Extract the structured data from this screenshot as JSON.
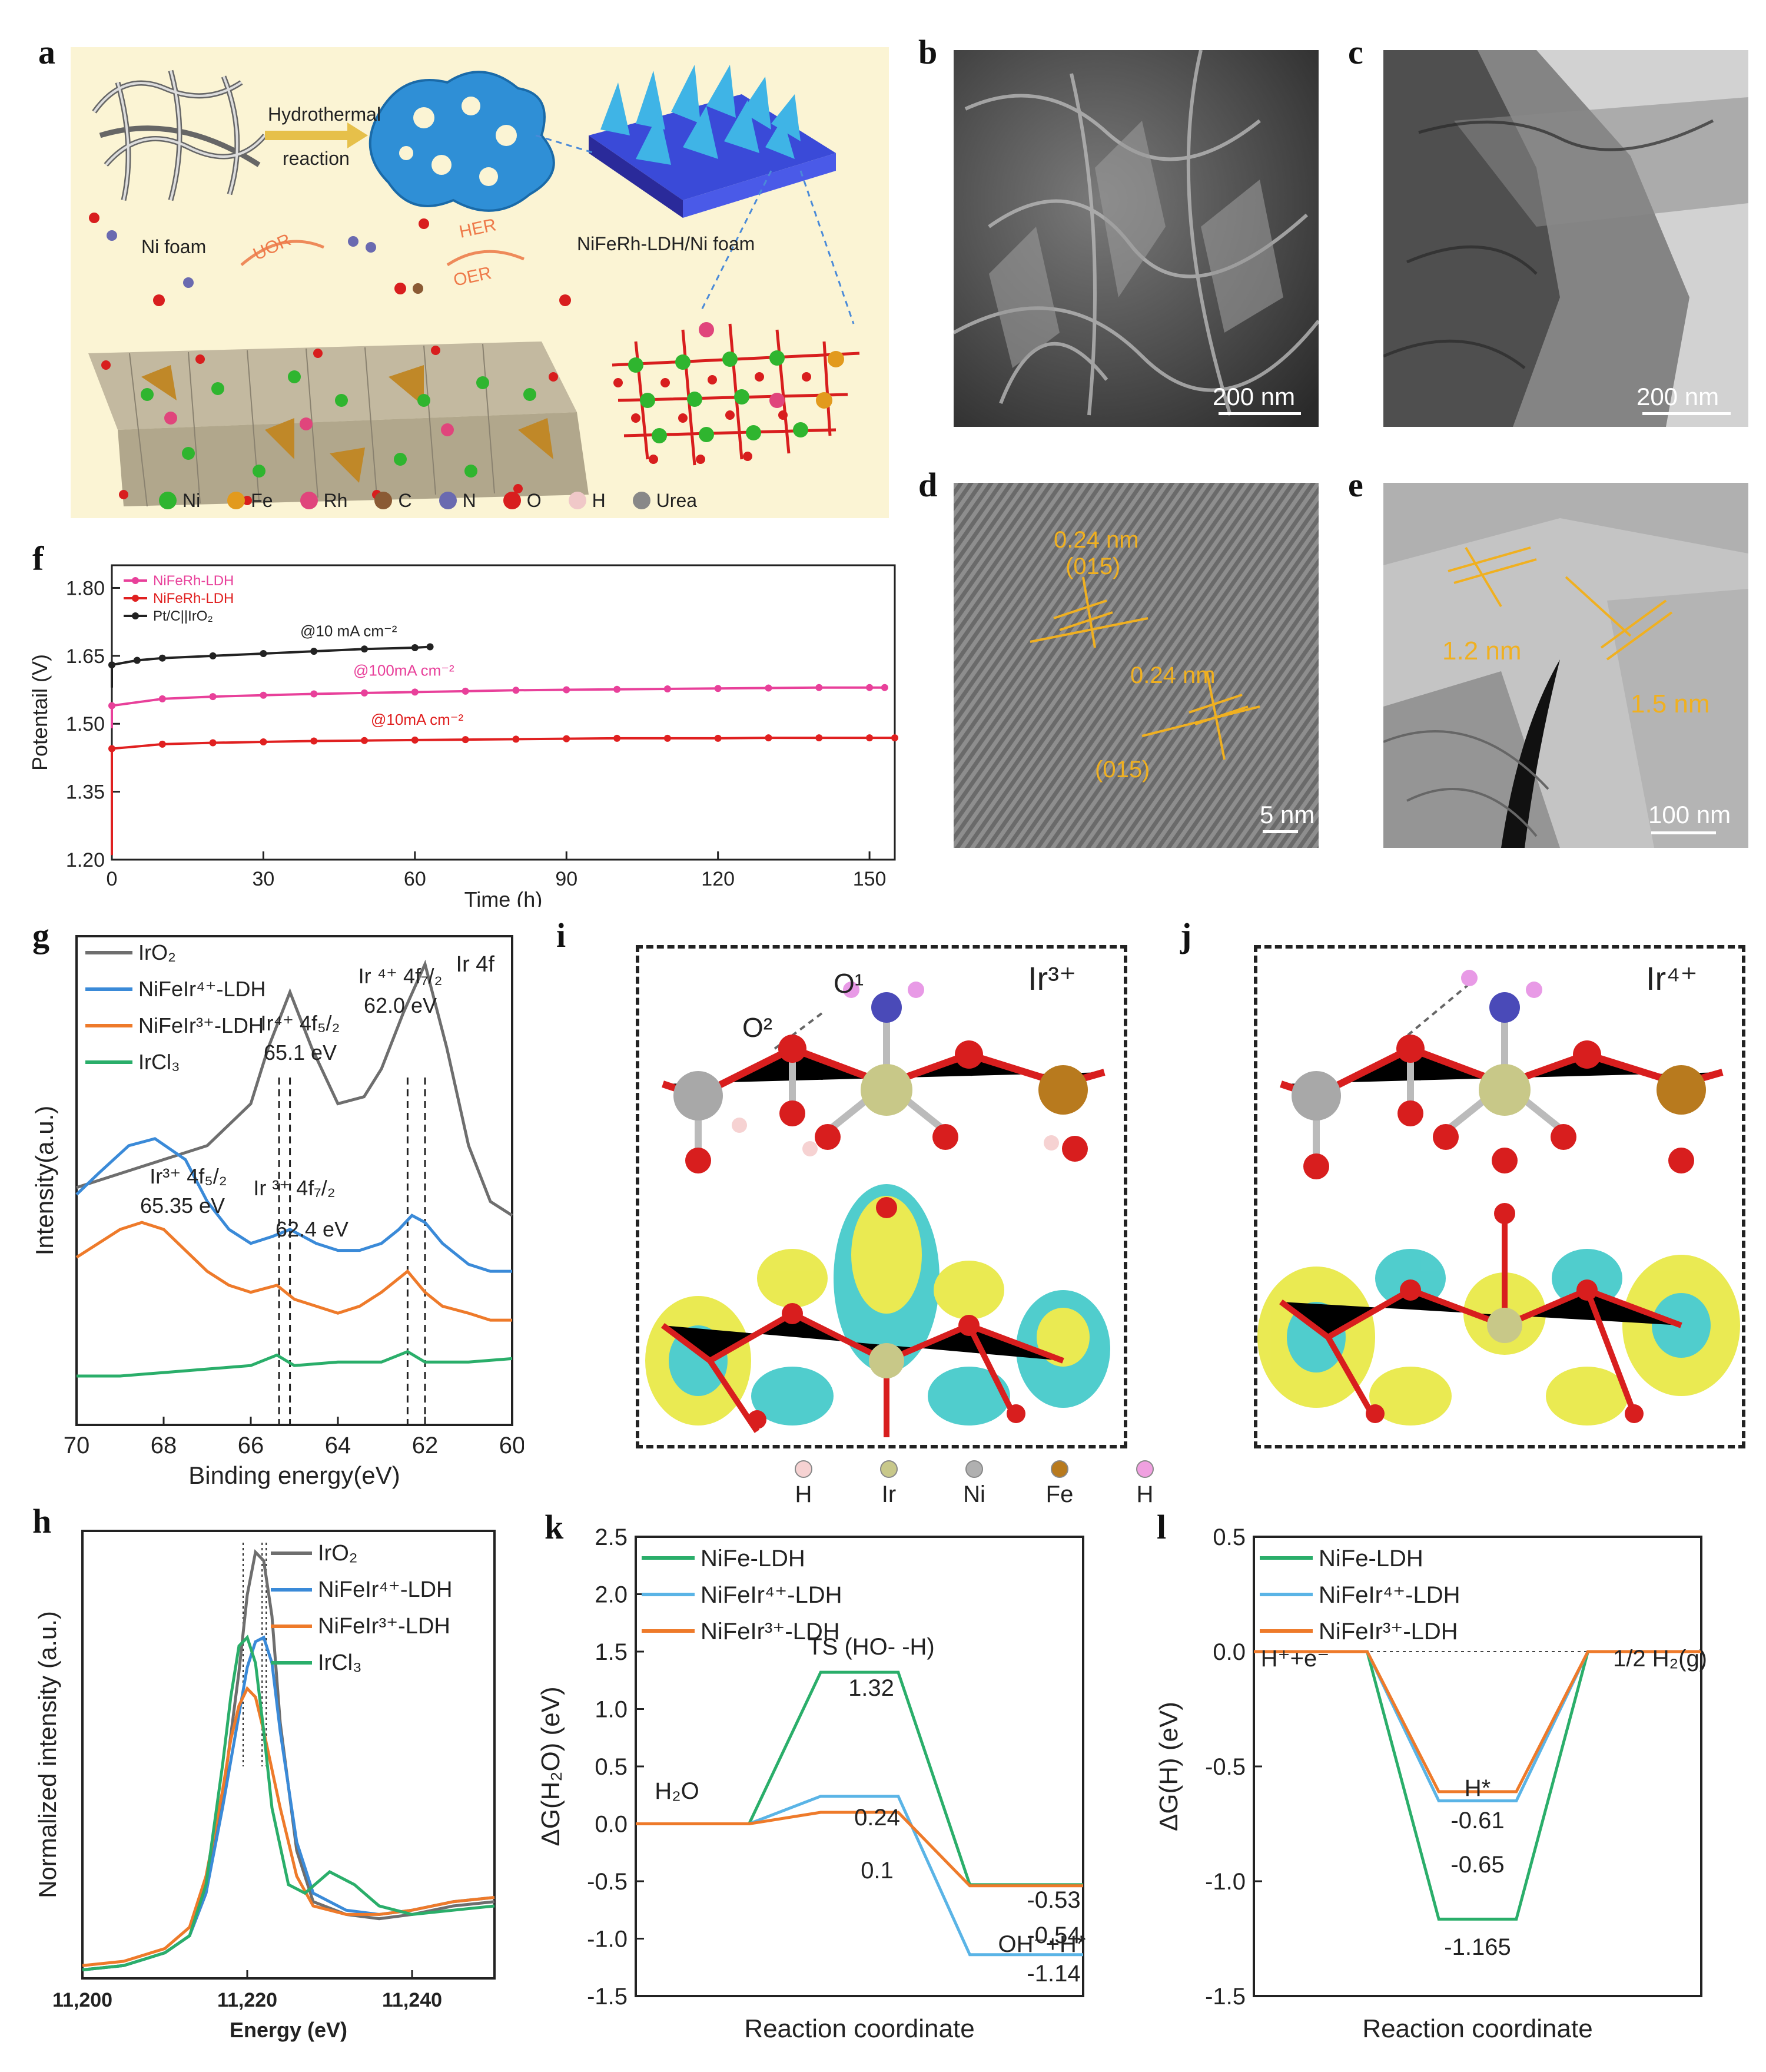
{
  "panels": {
    "a": {
      "label": "a",
      "texts": {
        "hydrothermal": "Hydrothermal",
        "reaction": "reaction",
        "ni_foam": "Ni foam",
        "product": "NiFeRh-LDH/Ni foam",
        "uor": "UOR",
        "her": "HER",
        "oer": "OER"
      },
      "legend": [
        {
          "label": "Ni",
          "color": "#2fb52f"
        },
        {
          "label": "Fe",
          "color": "#e29a1d"
        },
        {
          "label": "Rh",
          "color": "#e0457c"
        },
        {
          "label": "C",
          "color": "#8a5a34"
        },
        {
          "label": "N",
          "color": "#6a6ab0"
        },
        {
          "label": "O",
          "color": "#d81e1e"
        },
        {
          "label": "H",
          "color": "#f0c8c8"
        },
        {
          "label": "Urea",
          "color": "#888888"
        }
      ]
    },
    "b": {
      "label": "b",
      "scalebar": "200 nm"
    },
    "c": {
      "label": "c",
      "scalebar": "200 nm"
    },
    "d": {
      "label": "d",
      "scalebar": "5 nm",
      "annotations": [
        "0.24 nm",
        "(015)",
        "0.24 nm",
        "(015)"
      ]
    },
    "e": {
      "label": "e",
      "scalebar": "100 nm",
      "annotations": [
        "1.2 nm",
        "1.5 nm"
      ]
    },
    "f": {
      "label": "f"
    },
    "g": {
      "label": "g",
      "corner": "Ir 4f",
      "annotations": [
        "Ir⁴⁺ 4f₅/₂",
        "65.1 eV",
        "Ir ⁴⁺ 4f₇/₂",
        "62.0 eV",
        "Ir³⁺ 4f₅/₂",
        "65.35 eV",
        "Ir ³⁺ 4f₇/₂",
        "62.4 eV"
      ]
    },
    "h": {
      "label": "h"
    },
    "i": {
      "label": "i",
      "ion": "Ir³⁺",
      "atom_labels": [
        "O¹",
        "O²"
      ]
    },
    "j": {
      "label": "j",
      "ion": "Ir⁴⁺"
    },
    "ij_legend": [
      {
        "label": "H",
        "color": "#f6d2d2"
      },
      {
        "label": "Ir",
        "color": "#c8c88a"
      },
      {
        "label": "Ni",
        "color": "#b0b0b0"
      },
      {
        "label": "Fe",
        "color": "#b87a1e"
      },
      {
        "label": "H",
        "color": "#f0a0e0"
      }
    ],
    "k": {
      "label": "k"
    },
    "l": {
      "label": "l"
    }
  },
  "chart_data": [
    {
      "panel": "f",
      "type": "line",
      "xlabel": "Time (h)",
      "ylabel": "Potentail (V)",
      "xlim": [
        0,
        155
      ],
      "ylim": [
        1.2,
        1.85
      ],
      "xticks": [
        0,
        30,
        60,
        90,
        120,
        150
      ],
      "yticks": [
        1.2,
        1.35,
        1.5,
        1.65,
        1.8
      ],
      "legend_position": "top-left",
      "series": [
        {
          "name": "NiFeRh-LDH",
          "color": "#e8409a",
          "annotation": "@100mA cm⁻²",
          "x": [
            0,
            10,
            20,
            30,
            40,
            50,
            60,
            70,
            80,
            90,
            100,
            110,
            120,
            130,
            140,
            150,
            153
          ],
          "y": [
            1.54,
            1.555,
            1.56,
            1.563,
            1.566,
            1.568,
            1.57,
            1.572,
            1.574,
            1.575,
            1.576,
            1.577,
            1.578,
            1.579,
            1.58,
            1.58,
            1.58
          ]
        },
        {
          "name": "NiFeRh-LDH",
          "color": "#e02020",
          "annotation": "@10mA cm⁻²",
          "x": [
            0,
            10,
            20,
            30,
            40,
            50,
            60,
            70,
            80,
            90,
            100,
            110,
            120,
            130,
            140,
            150,
            155
          ],
          "y": [
            1.445,
            1.455,
            1.458,
            1.46,
            1.462,
            1.463,
            1.464,
            1.465,
            1.466,
            1.467,
            1.468,
            1.468,
            1.468,
            1.469,
            1.469,
            1.469,
            1.469
          ]
        },
        {
          "name": "Pt/C||IrO₂",
          "color": "#222222",
          "annotation": "@10 mA cm⁻²",
          "x": [
            0,
            5,
            10,
            20,
            30,
            40,
            50,
            60,
            63
          ],
          "y": [
            1.63,
            1.64,
            1.645,
            1.65,
            1.655,
            1.66,
            1.665,
            1.668,
            1.67
          ]
        }
      ]
    },
    {
      "panel": "g",
      "type": "line",
      "xlabel": "Binding energy(eV)",
      "ylabel": "Intensity(a.u.)",
      "xlim": [
        70,
        60
      ],
      "xticks": [
        70,
        68,
        66,
        64,
        62,
        60
      ],
      "legend_position": "top-left",
      "series": [
        {
          "name": "IrO₂",
          "color": "#6e6e6e",
          "x": [
            70,
            69,
            68,
            67,
            66,
            65.6,
            65.1,
            64.6,
            64,
            63.4,
            63,
            62.5,
            62,
            61.5,
            61,
            60.5,
            60
          ],
          "y": [
            0.64,
            0.66,
            0.68,
            0.7,
            0.76,
            0.84,
            0.92,
            0.84,
            0.76,
            0.77,
            0.81,
            0.89,
            0.96,
            0.84,
            0.7,
            0.62,
            0.6
          ]
        },
        {
          "name": "NiFeIr⁴⁺-LDH",
          "color": "#3a8ad8",
          "x": [
            70,
            69.5,
            68.8,
            68.2,
            67.5,
            67,
            66.5,
            66,
            65.5,
            65.1,
            64.5,
            64,
            63.5,
            63,
            62.6,
            62.3,
            62,
            61.6,
            61,
            60.5,
            60
          ],
          "y": [
            0.63,
            0.66,
            0.7,
            0.71,
            0.68,
            0.62,
            0.58,
            0.56,
            0.57,
            0.58,
            0.56,
            0.55,
            0.55,
            0.56,
            0.58,
            0.6,
            0.59,
            0.56,
            0.53,
            0.52,
            0.52
          ]
        },
        {
          "name": "NiFeIr³⁺-LDH",
          "color": "#ee7a2a",
          "x": [
            70,
            69.5,
            69,
            68.5,
            68,
            67.5,
            67,
            66.5,
            66,
            65.4,
            65,
            64.5,
            64,
            63.5,
            63,
            62.4,
            62,
            61.6,
            61,
            60.5,
            60
          ],
          "y": [
            0.54,
            0.56,
            0.58,
            0.59,
            0.58,
            0.55,
            0.52,
            0.5,
            0.49,
            0.5,
            0.48,
            0.47,
            0.46,
            0.47,
            0.49,
            0.52,
            0.49,
            0.47,
            0.46,
            0.45,
            0.45
          ]
        },
        {
          "name": "IrCl₃",
          "color": "#2aae6a",
          "x": [
            70,
            69,
            68,
            67,
            66,
            65.4,
            65,
            64,
            63,
            62.4,
            62,
            61,
            60
          ],
          "y": [
            0.37,
            0.37,
            0.375,
            0.38,
            0.385,
            0.4,
            0.385,
            0.39,
            0.39,
            0.405,
            0.39,
            0.39,
            0.395
          ]
        }
      ]
    },
    {
      "panel": "h",
      "type": "line",
      "xlabel": "Energy (eV)",
      "ylabel": "Normalized intensity (a.u.)",
      "xlim": [
        11200,
        11250
      ],
      "xticks": [
        11200,
        11220,
        11240
      ],
      "xticklabels": [
        "11,200",
        "11,220",
        "11,240"
      ],
      "legend_position": "top-right",
      "series": [
        {
          "name": "IrO₂",
          "color": "#6e6e6e",
          "x": [
            11200,
            11205,
            11210,
            11213,
            11215,
            11217,
            11219,
            11220,
            11221,
            11222,
            11223,
            11224,
            11226,
            11228,
            11232,
            11236,
            11240,
            11245,
            11250
          ],
          "y": [
            0.02,
            0.03,
            0.06,
            0.1,
            0.2,
            0.42,
            0.72,
            0.9,
            1.0,
            0.98,
            0.85,
            0.6,
            0.3,
            0.18,
            0.15,
            0.14,
            0.15,
            0.17,
            0.18
          ]
        },
        {
          "name": "NiFeIr⁴⁺-LDH",
          "color": "#3a8ad8",
          "x": [
            11200,
            11205,
            11210,
            11213,
            11215,
            11217,
            11219,
            11220,
            11221,
            11222,
            11223,
            11224,
            11226,
            11228,
            11232,
            11236,
            11240,
            11245,
            11250
          ],
          "y": [
            0.02,
            0.03,
            0.06,
            0.1,
            0.2,
            0.4,
            0.62,
            0.73,
            0.79,
            0.8,
            0.74,
            0.58,
            0.32,
            0.2,
            0.16,
            0.15,
            0.16,
            0.18,
            0.19
          ]
        },
        {
          "name": "NiFeIr³⁺-LDH",
          "color": "#ee7a2a",
          "x": [
            11200,
            11205,
            11210,
            11213,
            11215,
            11217,
            11218,
            11219,
            11220,
            11221,
            11222,
            11224,
            11226,
            11228,
            11232,
            11236,
            11240,
            11245,
            11250
          ],
          "y": [
            0.03,
            0.04,
            0.07,
            0.12,
            0.24,
            0.44,
            0.56,
            0.64,
            0.68,
            0.66,
            0.58,
            0.4,
            0.24,
            0.17,
            0.15,
            0.15,
            0.16,
            0.18,
            0.19
          ]
        },
        {
          "name": "IrCl₃",
          "color": "#2aae6a",
          "x": [
            11200,
            11205,
            11210,
            11213,
            11215,
            11217,
            11218,
            11219,
            11220,
            11221,
            11222,
            11223,
            11225,
            11227,
            11230,
            11233,
            11236,
            11240,
            11245,
            11250
          ],
          "y": [
            0.02,
            0.03,
            0.06,
            0.1,
            0.22,
            0.5,
            0.66,
            0.78,
            0.8,
            0.74,
            0.58,
            0.4,
            0.22,
            0.2,
            0.25,
            0.22,
            0.17,
            0.15,
            0.16,
            0.17
          ]
        }
      ]
    },
    {
      "panel": "k",
      "type": "line",
      "xlabel": "Reaction coordinate",
      "ylabel": "ΔG(H₂O) (eV)",
      "ylim": [
        -1.5,
        2.5
      ],
      "yticks": [
        -1.5,
        -1.0,
        -0.5,
        0.0,
        0.5,
        1.0,
        1.5,
        2.0,
        2.5
      ],
      "legend_position": "top-left",
      "state_labels": [
        {
          "text": "H₂O",
          "state": 0
        },
        {
          "text": "TS (HO- -H)",
          "state": 1
        },
        {
          "text": "OH⁻+H*",
          "state": 2
        }
      ],
      "series": [
        {
          "name": "NiFe-LDH",
          "color": "#2aae6a",
          "levels": [
            0,
            1.32,
            -0.53
          ]
        },
        {
          "name": "NiFeIr⁴⁺-LDH",
          "color": "#5ab4e6",
          "levels": [
            0,
            0.24,
            -1.14
          ]
        },
        {
          "name": "NiFeIr³⁺-LDH",
          "color": "#ee7a2a",
          "levels": [
            0,
            0.1,
            -0.54
          ]
        }
      ],
      "value_labels": [
        "1.32",
        "0.24",
        "0.1",
        "-0.53",
        "-0.54",
        "-1.14"
      ]
    },
    {
      "panel": "l",
      "type": "line",
      "xlabel": "Reaction coordinate",
      "ylabel": "ΔG(H) (eV)",
      "ylim": [
        -1.5,
        0.5
      ],
      "yticks": [
        -1.5,
        -1.0,
        -0.5,
        0.0,
        0.5
      ],
      "legend_position": "top-left",
      "state_labels": [
        {
          "text": "H⁺+e⁻",
          "state": 0
        },
        {
          "text": "H*",
          "state": 1
        },
        {
          "text": "1/2 H₂(g)",
          "state": 2
        }
      ],
      "series": [
        {
          "name": "NiFe-LDH",
          "color": "#2aae6a",
          "levels": [
            0,
            -1.165,
            0
          ]
        },
        {
          "name": "NiFeIr⁴⁺-LDH",
          "color": "#5ab4e6",
          "levels": [
            0,
            -0.65,
            0
          ]
        },
        {
          "name": "NiFeIr³⁺-LDH",
          "color": "#ee7a2a",
          "levels": [
            0,
            -0.61,
            0
          ]
        }
      ],
      "value_labels": [
        "-0.61",
        "-0.65",
        "-1.165"
      ]
    }
  ]
}
